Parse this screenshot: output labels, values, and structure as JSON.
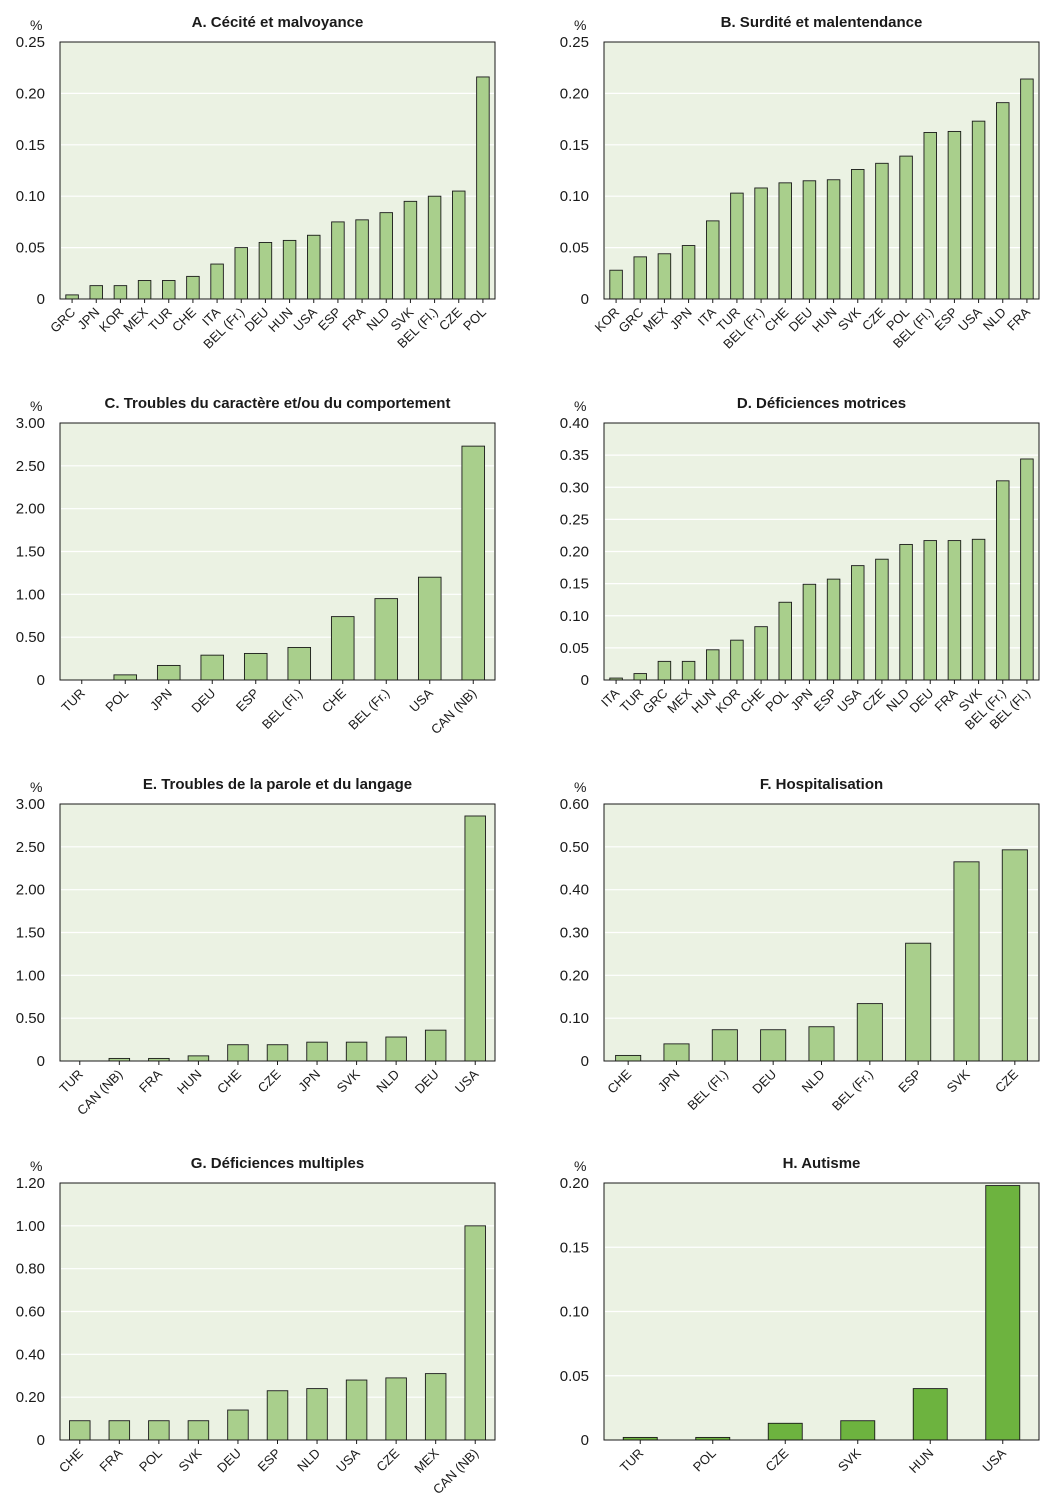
{
  "chart_data": [
    {
      "type": "bar",
      "title": "A. Cécité et malvoyance",
      "unit": "%",
      "ylim": [
        0,
        0.25
      ],
      "yticks": [
        "0",
        "0.05",
        "0.10",
        "0.15",
        "0.20",
        "0.25"
      ],
      "grid": true,
      "bar_color": "#a9cf8c",
      "categories": [
        "GRC",
        "JPN",
        "KOR",
        "MEX",
        "TUR",
        "CHE",
        "ITA",
        "BEL (Fr.)",
        "DEU",
        "HUN",
        "USA",
        "ESP",
        "FRA",
        "NLD",
        "SVK",
        "BEL (Fl.)",
        "CZE",
        "POL"
      ],
      "values": [
        0.004,
        0.013,
        0.013,
        0.018,
        0.018,
        0.022,
        0.034,
        0.05,
        0.055,
        0.057,
        0.062,
        0.075,
        0.077,
        0.084,
        0.095,
        0.1,
        0.105,
        0.216
      ]
    },
    {
      "type": "bar",
      "title": "B. Surdité et malentendance",
      "unit": "%",
      "ylim": [
        0,
        0.25
      ],
      "yticks": [
        "0",
        "0.05",
        "0.10",
        "0.15",
        "0.20",
        "0.25"
      ],
      "grid": true,
      "bar_color": "#a9cf8c",
      "categories": [
        "KOR",
        "GRC",
        "MEX",
        "JPN",
        "ITA",
        "TUR",
        "BEL (Fr.)",
        "CHE",
        "DEU",
        "HUN",
        "SVK",
        "CZE",
        "POL",
        "BEL (Fl.)",
        "ESP",
        "USA",
        "NLD",
        "FRA"
      ],
      "values": [
        0.028,
        0.041,
        0.044,
        0.052,
        0.076,
        0.103,
        0.108,
        0.113,
        0.115,
        0.116,
        0.126,
        0.132,
        0.139,
        0.162,
        0.163,
        0.173,
        0.191,
        0.214
      ]
    },
    {
      "type": "bar",
      "title": "C. Troubles du caractère et/ou du comportement",
      "unit": "%",
      "ylim": [
        0,
        3.0
      ],
      "yticks": [
        "0",
        "0.50",
        "1.00",
        "1.50",
        "2.00",
        "2.50",
        "3.00"
      ],
      "grid": true,
      "bar_color": "#a9cf8c",
      "categories": [
        "TUR",
        "POL",
        "JPN",
        "DEU",
        "ESP",
        "BEL (Fl.)",
        "CHE",
        "BEL (Fr.)",
        "USA",
        "CAN (NB)"
      ],
      "values": [
        0.0,
        0.06,
        0.17,
        0.29,
        0.31,
        0.38,
        0.74,
        0.95,
        1.2,
        2.73
      ]
    },
    {
      "type": "bar",
      "title": "D. Déficiences motrices",
      "unit": "%",
      "ylim": [
        0,
        0.4
      ],
      "yticks": [
        "0",
        "0.05",
        "0.10",
        "0.15",
        "0.20",
        "0.25",
        "0.30",
        "0.35",
        "0.40"
      ],
      "grid": true,
      "bar_color": "#a9cf8c",
      "categories": [
        "ITA",
        "TUR",
        "GRC",
        "MEX",
        "HUN",
        "KOR",
        "CHE",
        "POL",
        "JPN",
        "ESP",
        "USA",
        "CZE",
        "NLD",
        "DEU",
        "FRA",
        "SVK",
        "BEL (Fr.)",
        "BEL (Fl.)"
      ],
      "values": [
        0.003,
        0.01,
        0.029,
        0.029,
        0.047,
        0.062,
        0.083,
        0.121,
        0.149,
        0.157,
        0.178,
        0.188,
        0.211,
        0.217,
        0.217,
        0.219,
        0.31,
        0.344
      ]
    },
    {
      "type": "bar",
      "title": "E. Troubles de la parole et du langage",
      "unit": "%",
      "ylim": [
        0,
        3.0
      ],
      "yticks": [
        "0",
        "0.50",
        "1.00",
        "1.50",
        "2.00",
        "2.50",
        "3.00"
      ],
      "grid": true,
      "bar_color": "#a9cf8c",
      "categories": [
        "TUR",
        "CAN (NB)",
        "FRA",
        "HUN",
        "CHE",
        "CZE",
        "JPN",
        "SVK",
        "NLD",
        "DEU",
        "USA"
      ],
      "values": [
        0.0,
        0.03,
        0.03,
        0.06,
        0.19,
        0.19,
        0.22,
        0.22,
        0.28,
        0.36,
        2.86
      ]
    },
    {
      "type": "bar",
      "title": "F. Hospitalisation",
      "unit": "%",
      "ylim": [
        0,
        0.6
      ],
      "yticks": [
        "0",
        "0.10",
        "0.20",
        "0.30",
        "0.40",
        "0.50",
        "0.60"
      ],
      "grid": true,
      "bar_color": "#a9cf8c",
      "categories": [
        "CHE",
        "JPN",
        "BEL (Fl.)",
        "DEU",
        "NLD",
        "BEL (Fr.)",
        "ESP",
        "SVK",
        "CZE"
      ],
      "values": [
        0.013,
        0.04,
        0.073,
        0.073,
        0.08,
        0.134,
        0.275,
        0.465,
        0.493
      ]
    },
    {
      "type": "bar",
      "title": "G. Déficiences multiples",
      "unit": "%",
      "ylim": [
        0,
        1.2
      ],
      "yticks": [
        "0",
        "0.20",
        "0.40",
        "0.60",
        "0.80",
        "1.00",
        "1.20"
      ],
      "grid": true,
      "bar_color": "#a9cf8c",
      "categories": [
        "CHE",
        "FRA",
        "POL",
        "SVK",
        "DEU",
        "ESP",
        "NLD",
        "USA",
        "CZE",
        "MEX",
        "CAN (NB)"
      ],
      "values": [
        0.09,
        0.09,
        0.09,
        0.09,
        0.14,
        0.23,
        0.24,
        0.28,
        0.29,
        0.31,
        1.0
      ]
    },
    {
      "type": "bar",
      "title": "H. Autisme",
      "unit": "%",
      "ylim": [
        0,
        0.2
      ],
      "yticks": [
        "0",
        "0.05",
        "0.10",
        "0.15",
        "0.20"
      ],
      "grid": true,
      "bar_color": "#6db33f",
      "categories": [
        "TUR",
        "POL",
        "CZE",
        "SVK",
        "HUN",
        "USA"
      ],
      "values": [
        0.002,
        0.002,
        0.013,
        0.015,
        0.04,
        0.198
      ]
    }
  ]
}
